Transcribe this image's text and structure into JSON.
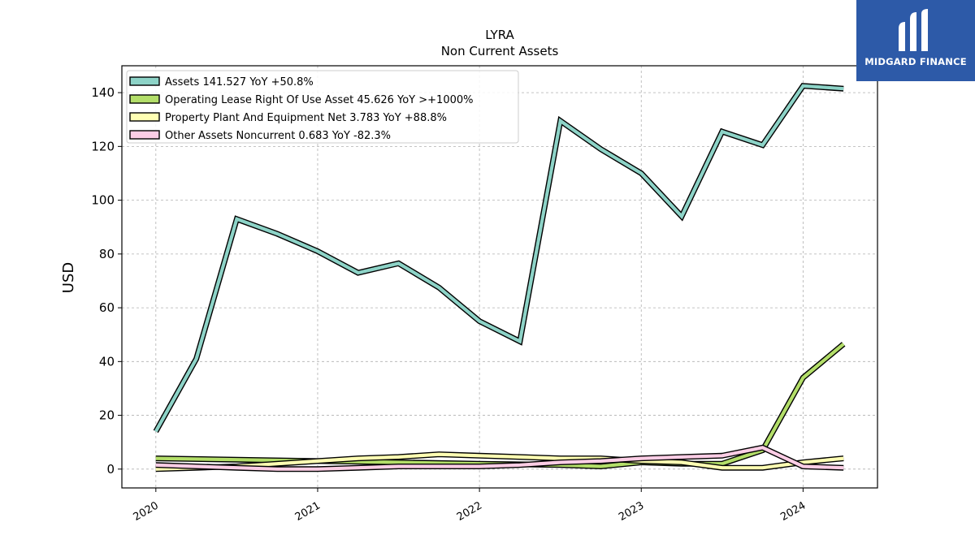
{
  "chart_data": {
    "type": "line",
    "title": "LYRA",
    "subtitle": "Non Current  Assets",
    "xlabel": "",
    "ylabel": "USD",
    "ylim": [
      -7,
      150
    ],
    "xlim": [
      2019.79,
      2024.46
    ],
    "yticks": [
      0,
      20,
      40,
      60,
      80,
      100,
      120,
      140
    ],
    "xticks": [
      {
        "value": 2020.0,
        "label": "2020"
      },
      {
        "value": 2021.0,
        "label": "2021"
      },
      {
        "value": 2022.0,
        "label": "2022"
      },
      {
        "value": 2023.0,
        "label": "2023"
      },
      {
        "value": 2024.0,
        "label": "2024"
      }
    ],
    "grid": true,
    "legend_position": "top-left",
    "series": [
      {
        "name": "Assets",
        "legend_label": "Assets  141.527 YoY +50.8%",
        "color": "#8dd3c7",
        "x": [
          2020.0,
          2020.25,
          2020.5,
          2020.75,
          2021.0,
          2021.25,
          2021.5,
          2021.75,
          2022.0,
          2022.25,
          2022.5,
          2022.75,
          2023.0,
          2023.25,
          2023.5,
          2023.75,
          2024.0,
          2024.25
        ],
        "y": [
          14,
          41,
          93,
          87.5,
          81,
          73,
          76.5,
          67.5,
          55,
          47.5,
          129.5,
          119,
          110,
          94,
          125.5,
          120.5,
          142.5,
          141.5
        ]
      },
      {
        "name": "Operating Lease Right Of Use Asset",
        "legend_label": "Operating Lease Right Of Use Asset  45.626 YoY >+1000%",
        "color": "#b3de69",
        "x": [
          2020.0,
          2020.5,
          2021.0,
          2021.5,
          2022.0,
          2022.5,
          2022.75,
          2023.0,
          2023.25,
          2023.5,
          2023.75,
          2024.0,
          2024.25
        ],
        "y": [
          4,
          3.5,
          3,
          2.5,
          2,
          1.5,
          1,
          2.5,
          2,
          2,
          7,
          34,
          46.5
        ]
      },
      {
        "name": "Property Plant And Equipment Net",
        "legend_label": "Property Plant And Equipment Net  3.783 YoY +88.8%",
        "color": "#ffffb3",
        "x": [
          2020.0,
          2020.25,
          2020.5,
          2020.75,
          2021.0,
          2021.25,
          2021.5,
          2021.75,
          2022.0,
          2022.25,
          2022.5,
          2022.75,
          2023.0,
          2023.25,
          2023.5,
          2023.75,
          2024.0,
          2024.25
        ],
        "y": [
          0,
          0.5,
          1,
          2,
          3,
          4,
          4.5,
          5.5,
          5,
          4.5,
          4,
          4,
          3,
          2.5,
          0.5,
          0.5,
          2.5,
          4
        ]
      },
      {
        "name": "Other Assets Noncurrent",
        "legend_label": "Other Assets Noncurrent  0.683 YoY -82.3%",
        "color": "#fccde5",
        "x": [
          2020.0,
          2020.25,
          2020.5,
          2020.75,
          2021.0,
          2021.25,
          2021.5,
          2021.75,
          2022.0,
          2022.25,
          2022.5,
          2022.75,
          2023.0,
          2023.25,
          2023.5,
          2023.75,
          2024.0,
          2024.25
        ],
        "y": [
          1.5,
          1,
          0.5,
          0,
          0,
          0.5,
          1,
          1,
          1,
          1.5,
          2.5,
          3,
          4,
          4.5,
          5,
          8,
          1,
          0.5
        ]
      }
    ]
  },
  "logo": {
    "text": "MIDGARD FINANCE",
    "color": "#2d5aa8"
  }
}
